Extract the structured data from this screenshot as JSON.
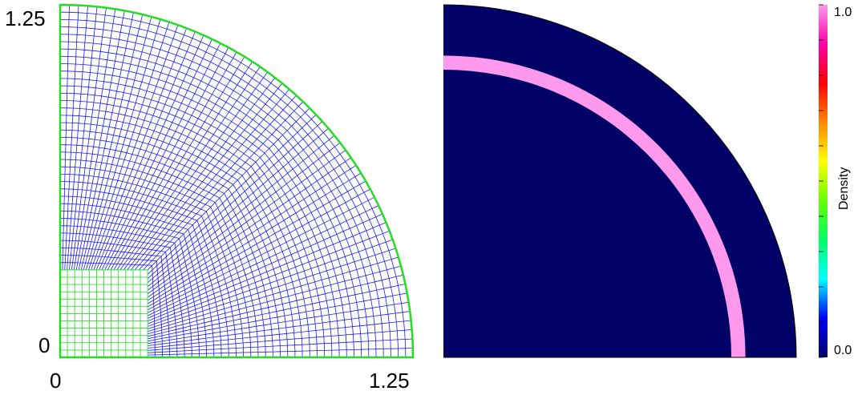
{
  "mesh_panel": {
    "x_tick_min": "0",
    "x_tick_max": "1.25",
    "y_tick_min": "0",
    "y_tick_max": "1.25",
    "radius": 1.25,
    "inner_block_size": 0.31,
    "radial_cells": 36,
    "angular_cells": 60,
    "block_cells": 12,
    "mesh_color": "#1a1aff",
    "block_color": "#33dd33",
    "boundary_color": "#22dd22"
  },
  "density_panel": {
    "background_color": "#000066",
    "ring_color": "#ff99ee",
    "ring_inner_radius": 1.02,
    "ring_outer_radius": 1.07,
    "radius": 1.25
  },
  "colorbar": {
    "title": "Density",
    "max_label": "1.0",
    "min_label": "0.0",
    "stops": [
      "#000066",
      "#0000ff",
      "#00ffff",
      "#00ff66",
      "#66ff00",
      "#ffff00",
      "#ff8800",
      "#ff0000",
      "#ff00aa",
      "#ff99ee"
    ]
  }
}
